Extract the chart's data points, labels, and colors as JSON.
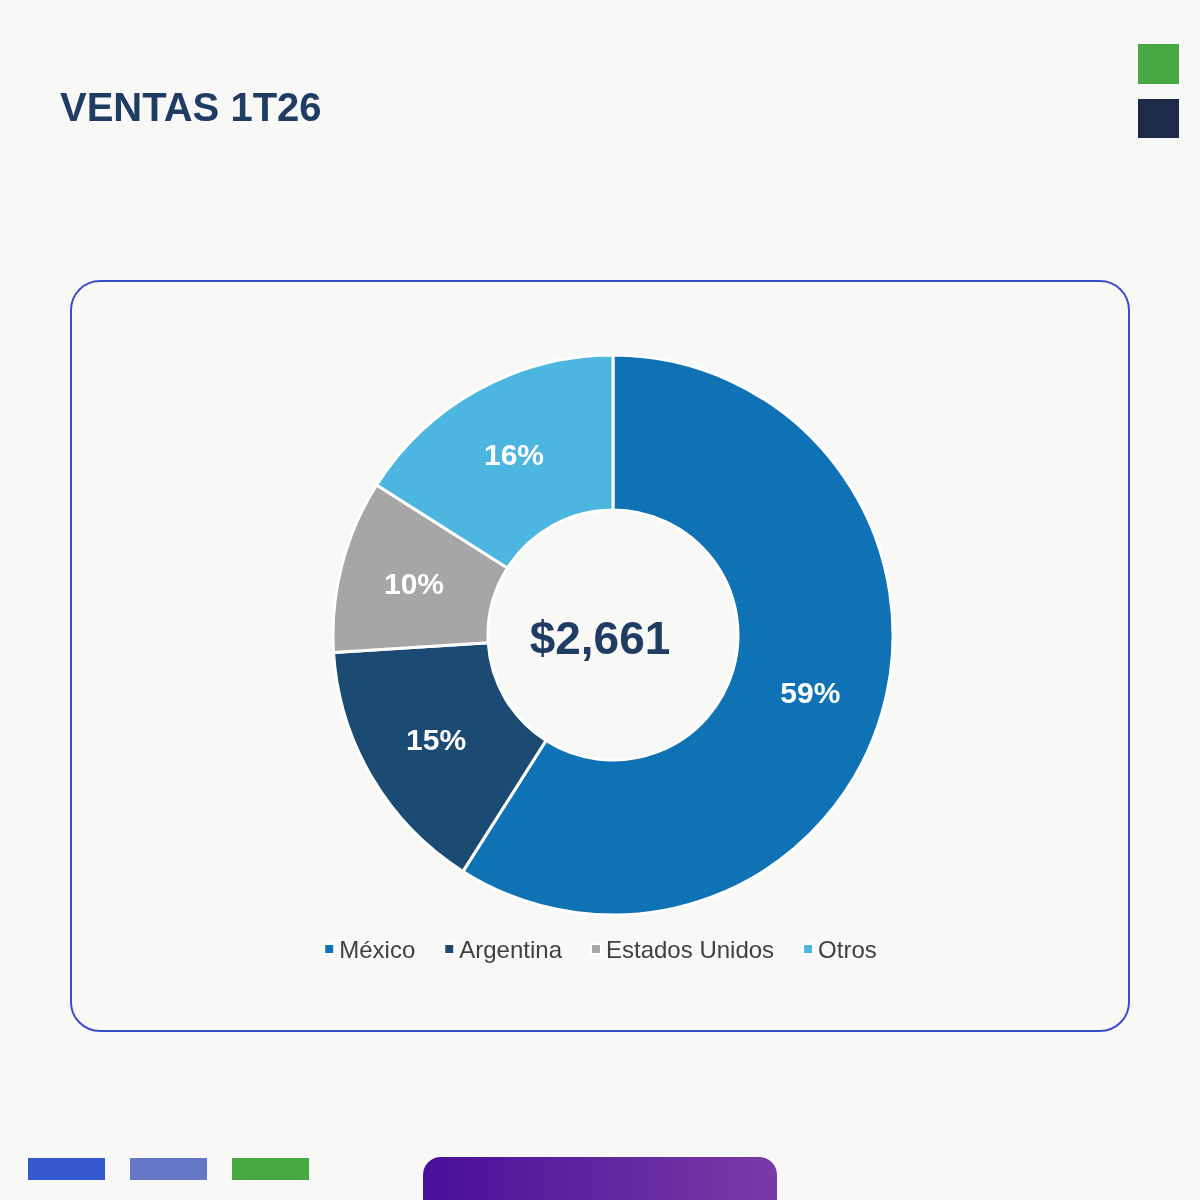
{
  "chart_data": {
    "type": "donut",
    "title": "VENTAS 1T26",
    "categories": [
      "México",
      "Argentina",
      "Estados Unidos",
      "Otros"
    ],
    "values": [
      59,
      15,
      10,
      16
    ],
    "colors": [
      "#0f72b5",
      "#1b4a72",
      "#a6a6a6",
      "#4cb5e0"
    ],
    "value_labels": [
      "59%",
      "15%",
      "10%",
      "16%"
    ],
    "legend": "bottom",
    "annotations": [
      "$2,661"
    ]
  }
}
